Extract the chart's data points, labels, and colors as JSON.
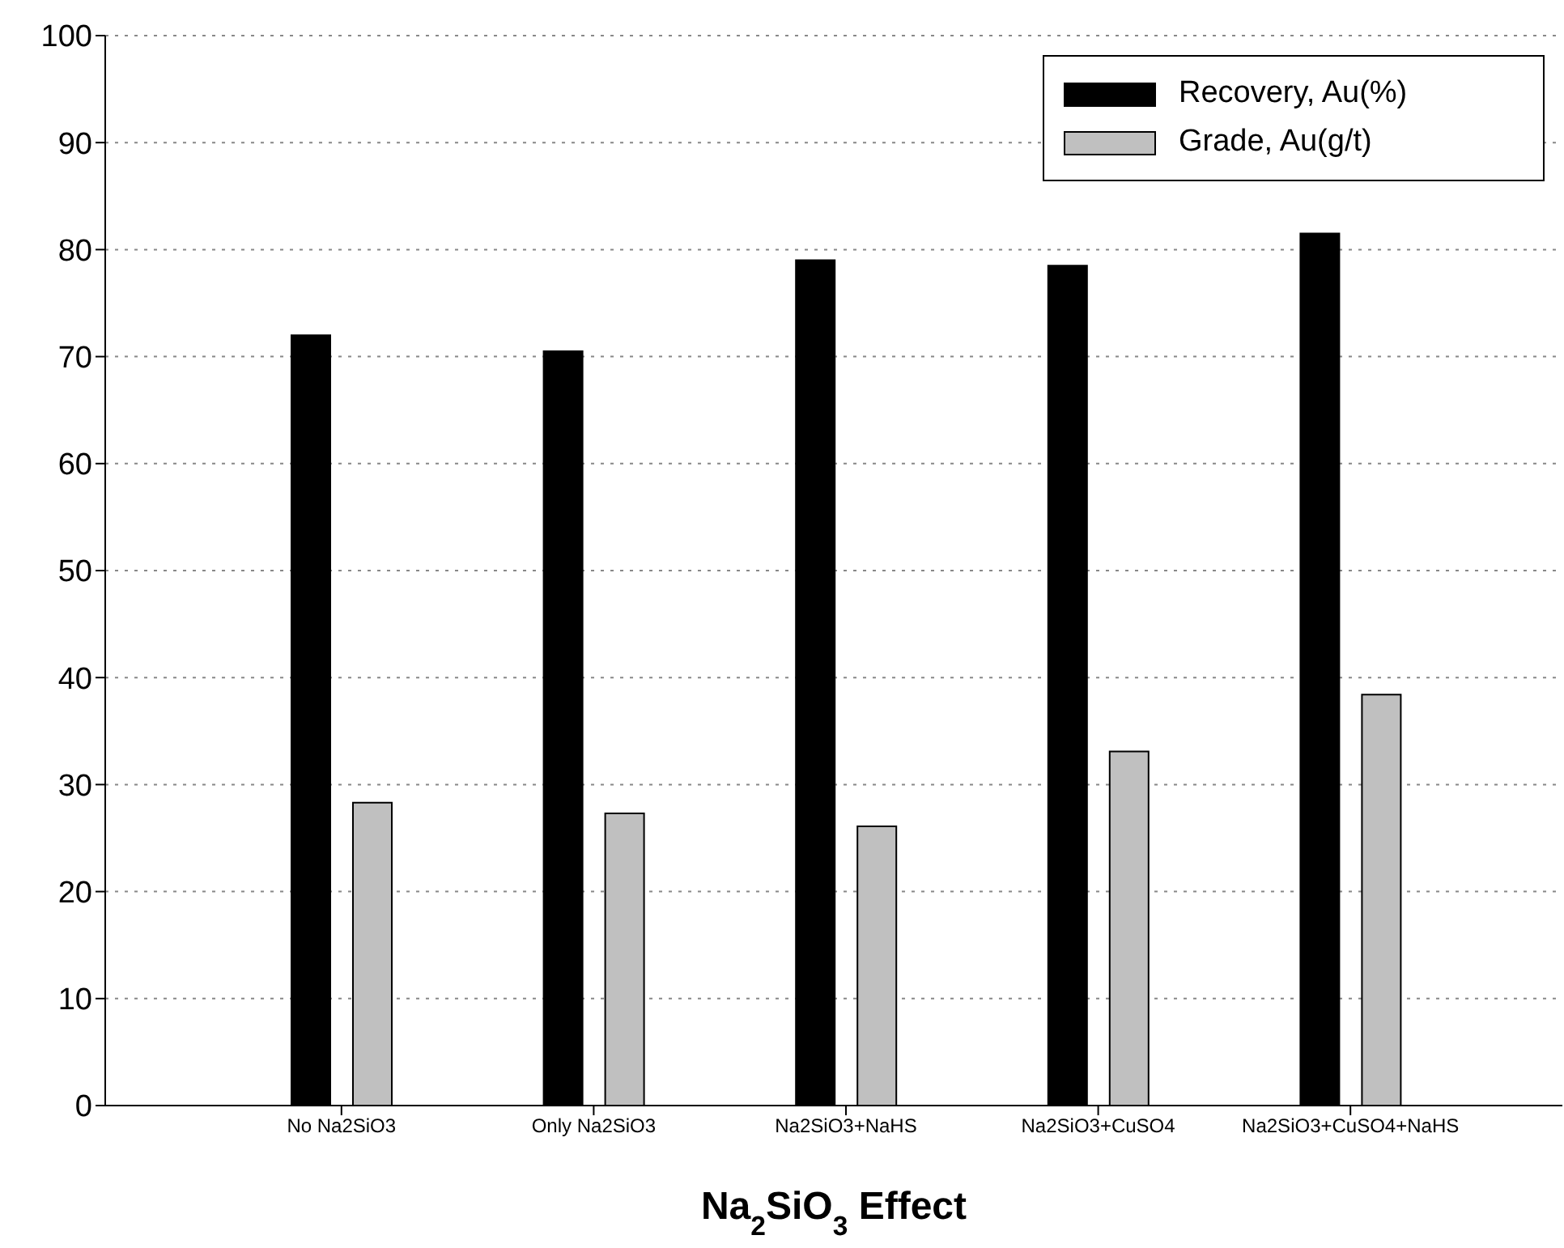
{
  "chart_data": {
    "type": "bar",
    "xlabel": "Na$_{2}$SiO$_{3}$ Effect",
    "categories": [
      "No Na2SiO3",
      "Only Na2SiO3",
      "Na2SiO3+NaHS",
      "Na2SiO3+CuSO4",
      "Na2SiO3+CuSO4+NaHS"
    ],
    "series": [
      {
        "name": "Recovery, Au(%)",
        "color": "#000000",
        "values": [
          72,
          70.5,
          79,
          78.5,
          81.5
        ]
      },
      {
        "name": "Grade, Au(g/t)",
        "color": "#c0c0c0",
        "values": [
          28.3,
          27.3,
          26.1,
          33.1,
          38.4
        ]
      }
    ],
    "ylim": [
      0,
      100
    ],
    "yticks": [
      0,
      10,
      20,
      30,
      40,
      50,
      60,
      70,
      80,
      90,
      100
    ],
    "grid": "y",
    "legend": "top right"
  }
}
